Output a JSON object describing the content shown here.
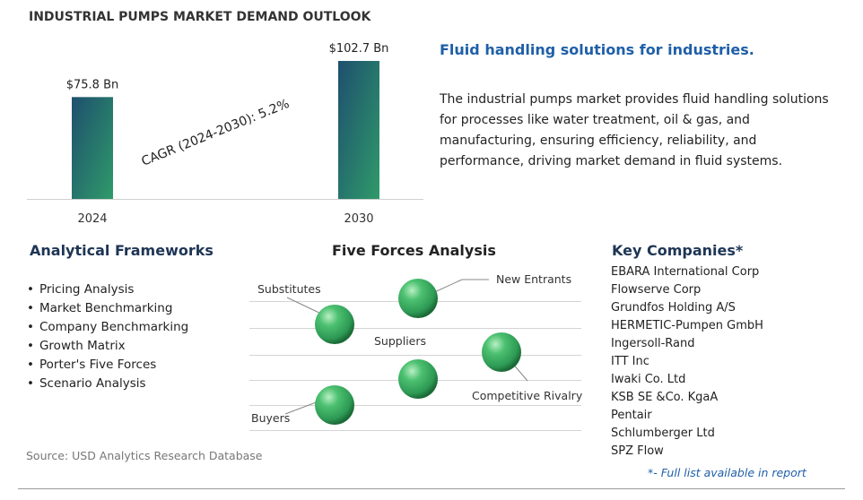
{
  "page_title": "INDUSTRIAL PUMPS MARKET DEMAND OUTLOOK",
  "chart_data": {
    "type": "bar",
    "categories": [
      "2024",
      "2030"
    ],
    "values": [
      75.8,
      102.7
    ],
    "value_labels": [
      "$75.8 Bn",
      "$102.7 Bn"
    ],
    "unit": "Bn",
    "annotation": "CAGR (2024-2030):  5.2%",
    "ylim": [
      0,
      102.7
    ],
    "grid": false,
    "bar_gradient": [
      "#1e4f6e",
      "#2f9a6a"
    ]
  },
  "headline": "Fluid handling solutions for industries.",
  "description": "The industrial pumps market provides fluid handling solutions for processes like water treatment, oil & gas, and manufacturing, ensuring efficiency, reliability, and performance, driving market demand in fluid systems.",
  "frameworks": {
    "title": "Analytical Frameworks",
    "items": [
      "Pricing Analysis",
      "Market Benchmarking",
      "Company Benchmarking",
      "Growth Matrix",
      "Porter's Five Forces",
      "Scenario Analysis"
    ]
  },
  "five_forces": {
    "title": "Five Forces Analysis",
    "forces": [
      "Substitutes",
      "New Entrants",
      "Suppliers",
      "Competitive Rivalry",
      "Buyers"
    ],
    "sphere_color": "#2e9a55"
  },
  "companies": {
    "title": "Key Companies*",
    "items": [
      "EBARA International Corp",
      "Flowserve Corp",
      "Grundfos Holding A/S",
      "HERMETIC-Pumpen GmbH",
      "Ingersoll-Rand",
      "ITT Inc",
      "Iwaki Co. Ltd",
      "KSB SE &Co. KgaA",
      "Pentair",
      "Schlumberger Ltd",
      "SPZ Flow"
    ],
    "note": "*- Full list available in report"
  },
  "source": "Source: USD Analytics Research Database"
}
